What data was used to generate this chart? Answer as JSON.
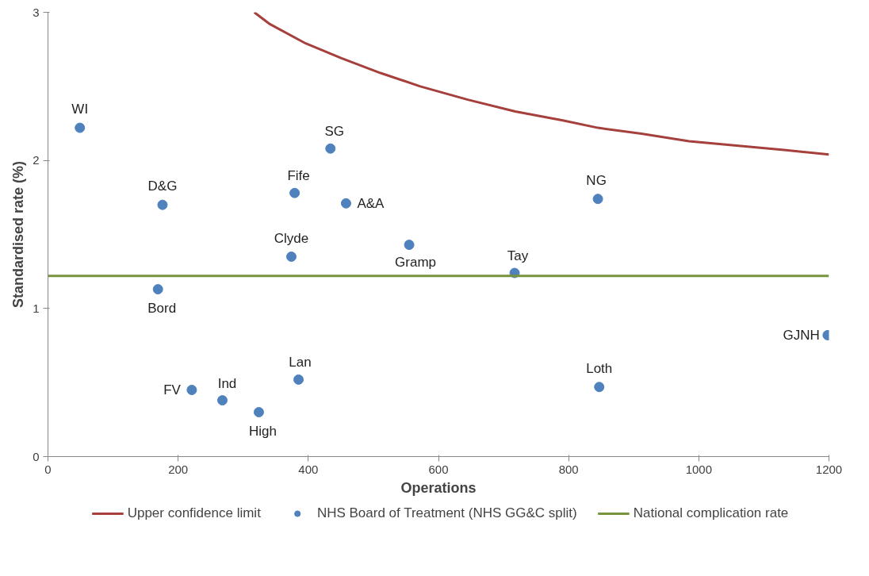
{
  "chart_data": {
    "type": "scatter",
    "xlabel": "Operations",
    "ylabel": "Standardised rate (%)",
    "xlim": [
      0,
      1200
    ],
    "ylim": [
      0,
      3
    ],
    "xticks": [
      0,
      200,
      400,
      600,
      800,
      1000,
      1200
    ],
    "yticks": [
      0,
      1,
      2,
      3
    ],
    "grid": false,
    "legend": "bottom",
    "marker": "circle",
    "series": [
      {
        "name": "Upper confidence limit",
        "type": "line",
        "marker": "none",
        "color": "#a5403d",
        "x": [
          317,
          341,
          396,
          451,
          511,
          572,
          645,
          718,
          791,
          845,
          912,
          985,
          1058,
          1131,
          1200
        ],
        "values": [
          3.0,
          2.92,
          2.79,
          2.69,
          2.59,
          2.5,
          2.41,
          2.33,
          2.27,
          2.22,
          2.18,
          2.13,
          2.1,
          2.07,
          2.04
        ]
      },
      {
        "name": "NHS Board of Treatment (NHS GG&C split)",
        "color": "#4f81bd",
        "x": [
          49,
          176,
          169,
          221,
          268,
          324,
          385,
          374,
          379,
          434,
          458,
          555,
          717,
          845,
          847,
          1198
        ],
        "values": [
          2.22,
          1.7,
          1.13,
          0.45,
          0.38,
          0.3,
          0.52,
          1.35,
          1.78,
          2.08,
          1.71,
          1.43,
          1.24,
          1.74,
          0.47,
          0.82
        ]
      }
    ],
    "ref_lines": [
      {
        "axis": "y",
        "value": 1.22,
        "label": "National complication rate",
        "color": "#77933c"
      }
    ],
    "annotations": [
      {
        "text": "WI",
        "x": 49,
        "y": 2.22
      },
      {
        "text": "D&G",
        "x": 176,
        "y": 1.7
      },
      {
        "text": "Bord",
        "x": 169,
        "y": 1.13
      },
      {
        "text": "FV",
        "x": 221,
        "y": 0.45
      },
      {
        "text": "Ind",
        "x": 268,
        "y": 0.38
      },
      {
        "text": "High",
        "x": 324,
        "y": 0.3
      },
      {
        "text": "Lan",
        "x": 385,
        "y": 0.52
      },
      {
        "text": "Clyde",
        "x": 374,
        "y": 1.35
      },
      {
        "text": "Fife",
        "x": 379,
        "y": 1.78
      },
      {
        "text": "SG",
        "x": 434,
        "y": 2.08
      },
      {
        "text": "A&A",
        "x": 458,
        "y": 1.71
      },
      {
        "text": "Gramp",
        "x": 555,
        "y": 1.43
      },
      {
        "text": "Tay",
        "x": 717,
        "y": 1.24
      },
      {
        "text": "NG",
        "x": 845,
        "y": 1.74
      },
      {
        "text": "Loth",
        "x": 847,
        "y": 0.47
      },
      {
        "text": "GJNH",
        "x": 1198,
        "y": 0.82
      }
    ]
  }
}
